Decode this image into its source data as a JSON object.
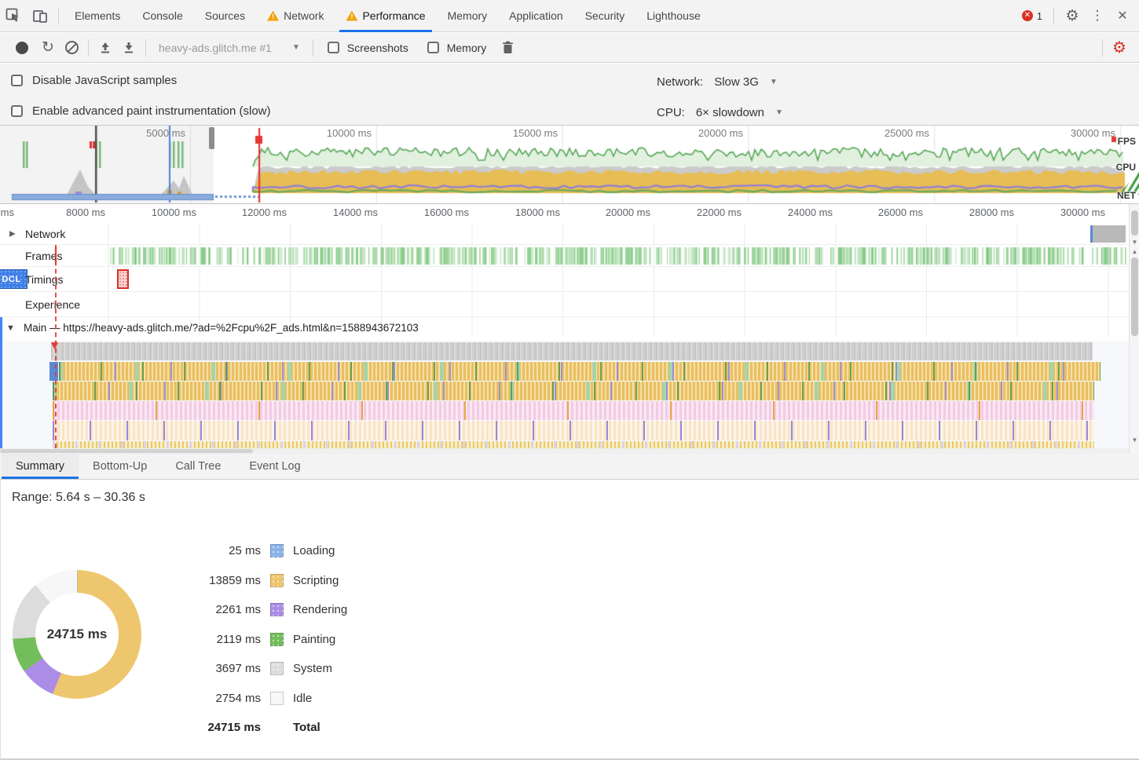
{
  "devtools": {
    "tabs": [
      {
        "label": "Elements"
      },
      {
        "label": "Console"
      },
      {
        "label": "Sources"
      },
      {
        "label": "Network",
        "warning": true
      },
      {
        "label": "Performance",
        "warning": true,
        "active": true
      },
      {
        "label": "Memory"
      },
      {
        "label": "Application"
      },
      {
        "label": "Security"
      },
      {
        "label": "Lighthouse"
      }
    ],
    "error_count": "1"
  },
  "toolbar": {
    "history_label": "heavy-ads.glitch.me #1",
    "screenshots_label": "Screenshots",
    "memory_label": "Memory"
  },
  "settings": {
    "disable_js": "Disable JavaScript samples",
    "paint_instr": "Enable advanced paint instrumentation (slow)",
    "network_label": "Network:",
    "network_value": "Slow 3G",
    "cpu_label": "CPU:",
    "cpu_value": "6× slowdown"
  },
  "overview": {
    "ruler_labels": [
      "5000 ms",
      "10000 ms",
      "15000 ms",
      "20000 ms",
      "25000 ms",
      "30000 ms"
    ],
    "lane_labels": [
      "FPS",
      "CPU",
      "NET"
    ]
  },
  "timeline": {
    "ruler_labels": [
      "ms",
      "8000 ms",
      "10000 ms",
      "12000 ms",
      "14000 ms",
      "16000 ms",
      "18000 ms",
      "20000 ms",
      "22000 ms",
      "24000 ms",
      "26000 ms",
      "28000 ms",
      "30000 ms"
    ],
    "rows": {
      "network": "Network",
      "frames": "Frames",
      "timings": "Timings",
      "experience": "Experience"
    },
    "dcl_badge": "DCL",
    "main_label": "Main — https://heavy-ads.glitch.me/?ad=%2Fcpu%2F_ads.html&n=1588943672103"
  },
  "bottom_tabs": [
    "Summary",
    "Bottom-Up",
    "Call Tree",
    "Event Log"
  ],
  "summary": {
    "range": "Range: 5.64 s – 30.36 s",
    "center_label": "24715 ms",
    "total_value": "24715 ms",
    "total_label": "Total",
    "legend": [
      {
        "value": "25 ms",
        "label": "Loading",
        "color": "#8ab4e8"
      },
      {
        "value": "13859 ms",
        "label": "Scripting",
        "color": "#eec66d"
      },
      {
        "value": "2261 ms",
        "label": "Rendering",
        "color": "#ab8de8"
      },
      {
        "value": "2119 ms",
        "label": "Painting",
        "color": "#74bd5d"
      },
      {
        "value": "3697 ms",
        "label": "System",
        "color": "#dcdcdc"
      },
      {
        "value": "2754 ms",
        "label": "Idle",
        "color": "#f7f7f7"
      }
    ]
  },
  "chart_data": {
    "type": "pie",
    "title": "Performance summary donut (ms)",
    "categories": [
      "Loading",
      "Scripting",
      "Rendering",
      "Painting",
      "System",
      "Idle"
    ],
    "values": [
      25,
      13859,
      2261,
      2119,
      3697,
      2754
    ],
    "total": 24715,
    "unit": "ms",
    "colors": [
      "#8ab4e8",
      "#eec66d",
      "#ab8de8",
      "#74bd5d",
      "#dcdcdc",
      "#f7f7f7"
    ],
    "legend_position": "right"
  },
  "colors": {
    "accent_blue": "#1a73e8",
    "record_red_gear": "#d93025",
    "fps_line": "#55a855",
    "fps_fill": "#e2f0e0",
    "cpu_yellow": "#e7bd55",
    "cpu_gray": "#cbcbcb",
    "cpu_purple": "#8f7ed8",
    "cpu_green": "#6faa5a",
    "net_blue": "#8fb4e8",
    "net_border": "#6b93cf",
    "frames_green": "#7ec67e",
    "marker_red": "#e53935",
    "grid": "#e3e3e3"
  }
}
